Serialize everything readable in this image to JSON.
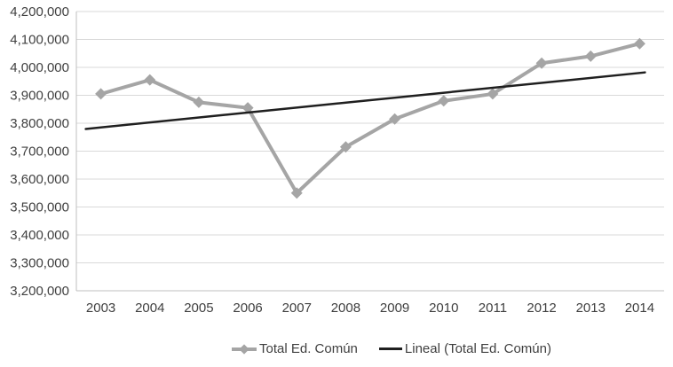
{
  "chart_data": {
    "type": "line",
    "title": "",
    "xlabel": "",
    "ylabel": "",
    "categories": [
      "2003",
      "2004",
      "2005",
      "2006",
      "2007",
      "2008",
      "2009",
      "2010",
      "2011",
      "2012",
      "2013",
      "2014"
    ],
    "series": [
      {
        "name": "Total Ed. Común",
        "type": "line_with_diamond_markers",
        "color": "#a5a5a5",
        "values": [
          3905000,
          3955000,
          3875000,
          3855000,
          3550000,
          3715000,
          3815000,
          3880000,
          3905000,
          4015000,
          4040000,
          4085000
        ]
      },
      {
        "name": "Lineal (Total Ed. Común)",
        "type": "linear_trendline",
        "color": "#1f1f1f",
        "start_value": 3785000,
        "end_value": 3980000
      }
    ],
    "ylim": [
      3200000,
      4200000
    ],
    "y_tick_interval": 100000,
    "y_tick_labels": [
      "3,200,000",
      "3,300,000",
      "3,400,000",
      "3,500,000",
      "3,600,000",
      "3,700,000",
      "3,800,000",
      "3,900,000",
      "4,000,000",
      "4,100,000",
      "4,200,000"
    ],
    "grid": "horizontal",
    "legend_position": "bottom-center",
    "background": "#ffffff",
    "gridline_color": "#d9d9d9",
    "axis_line_color": "#bfbfbf",
    "tick_text_color": "#404040"
  }
}
